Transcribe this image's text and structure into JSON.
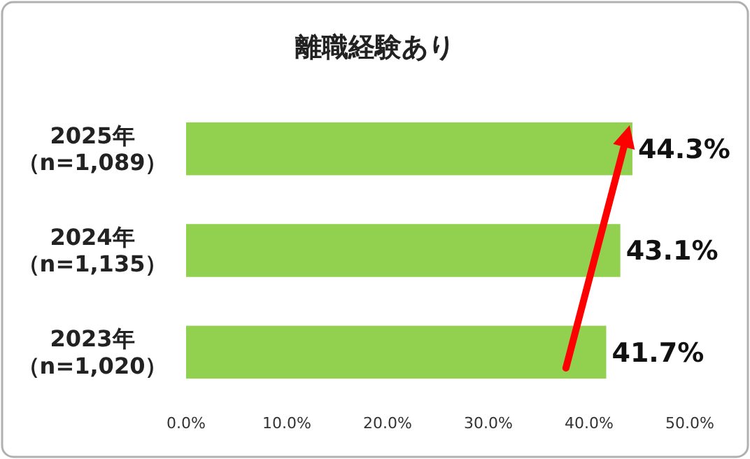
{
  "chart_data": {
    "type": "bar",
    "orientation": "horizontal",
    "title": "離職経験あり",
    "categories": [
      "2025年（n=1,089）",
      "2024年（n=1,135）",
      "2023年（n=1,020）"
    ],
    "values": [
      44.3,
      43.1,
      41.7
    ],
    "value_labels": [
      "44.3%",
      "43.1%",
      "41.7%"
    ],
    "color": "#92d050",
    "xlim": [
      0,
      50
    ],
    "xticks": [
      {
        "value": 0,
        "label": "0.0%"
      },
      {
        "value": 10,
        "label": "10.0%"
      },
      {
        "value": 20,
        "label": "20.0%"
      },
      {
        "value": 30,
        "label": "30.0%"
      },
      {
        "value": 40,
        "label": "40.0%"
      },
      {
        "value": 50,
        "label": "50.0%"
      }
    ],
    "grid": false
  }
}
